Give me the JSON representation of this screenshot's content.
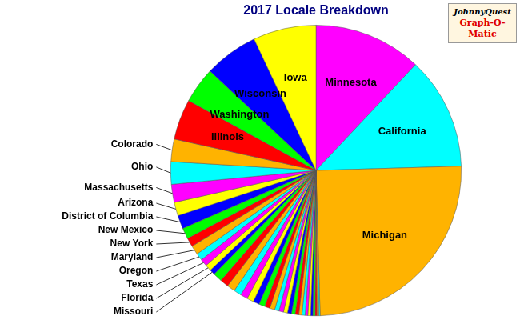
{
  "chart_data": {
    "type": "pie",
    "title": "2017 Locale Breakdown",
    "annotations": [
      "JohnnyQuest",
      "Graph-O-Matic"
    ],
    "categories": [
      "Minnesota",
      "California",
      "Michigan",
      null,
      null,
      null,
      null,
      null,
      null,
      null,
      null,
      null,
      null,
      null,
      null,
      null,
      null,
      null,
      null,
      null,
      null,
      null,
      null,
      null,
      null,
      null,
      null,
      null,
      "Missouri",
      "Florida",
      "Texas",
      "Oregon",
      "Maryland",
      "New York",
      "New Mexico",
      "District of Columbia",
      "Arizona",
      "Massachusetts",
      "Ohio",
      "Colorado",
      "Illinois",
      "Washington",
      "Wisconsin",
      "Iowa"
    ],
    "values": [
      12,
      12.5,
      25,
      0.15,
      0.2,
      0.2,
      0.25,
      0.25,
      0.3,
      0.3,
      0.35,
      0.35,
      0.4,
      0.4,
      0.45,
      0.45,
      0.5,
      0.5,
      0.55,
      0.6,
      0.65,
      0.7,
      0.75,
      0.8,
      0.85,
      0.9,
      0.95,
      1.0,
      0.6,
      0.7,
      0.8,
      0.8,
      1,
      1,
      1.2,
      1.5,
      1.5,
      2,
      2.5,
      2.5,
      4.5,
      4,
      6,
      7
    ],
    "colors": [
      "#ff00ff",
      "#00ffff",
      "#ffb300",
      "#00ffff",
      "#ffb300",
      "#ff0000",
      "#00ff00",
      "#0000ff",
      "#ffff00",
      "#ff00ff",
      "#00ffff",
      "#ffb300",
      "#ff0000",
      "#00ff00",
      "#0000ff",
      "#ffff00",
      "#ff00ff",
      "#00ffff",
      "#ffb300",
      "#ff0000",
      "#00ff00",
      "#0000ff",
      "#ffff00",
      "#ff00ff",
      "#00ffff",
      "#ffb300",
      "#ff0000",
      "#00ff00",
      "#0000ff",
      "#ffff00",
      "#ff00ff",
      "#00ffff",
      "#ffb300",
      "#ff0000",
      "#00ff00",
      "#0000ff",
      "#ffff00",
      "#ff00ff",
      "#00ffff",
      "#ffb300",
      "#ff0000",
      "#00ff00",
      "#0000ff",
      "#ffff00"
    ],
    "legend": false
  }
}
